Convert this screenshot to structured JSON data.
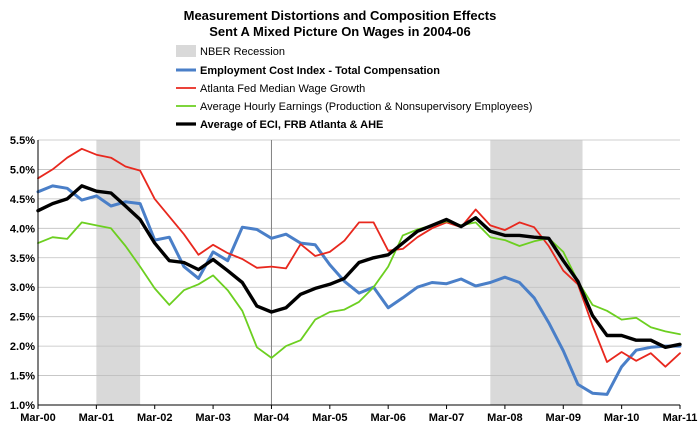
{
  "chart_data": {
    "type": "line",
    "title": [
      "Measurement Distortions and Composition Effects",
      "Sent A Mixed Picture On Wages in 2004-06"
    ],
    "xlabel": "",
    "ylabel": "",
    "x_ticks": [
      "Mar-00",
      "Mar-01",
      "Mar-02",
      "Mar-03",
      "Mar-04",
      "Mar-05",
      "Mar-06",
      "Mar-07",
      "Mar-08",
      "Mar-09",
      "Mar-10",
      "Mar-11"
    ],
    "y_ticks": [
      "1.0%",
      "1.5%",
      "2.0%",
      "2.5%",
      "3.0%",
      "3.5%",
      "4.0%",
      "4.5%",
      "5.0%",
      "5.5%"
    ],
    "ylim": [
      1.0,
      5.5
    ],
    "x_range": [
      2000.0,
      2011.0
    ],
    "grid": "horizontal",
    "legend_position": "top",
    "recession_label": "NBER Recession",
    "recessions": [
      [
        2001.0,
        2001.75
      ],
      [
        2007.75,
        2009.33
      ]
    ],
    "reference_line_x": 2004.0,
    "series": [
      {
        "name": "Employment Cost Index - Total Compensation",
        "color": "#4a7fc8",
        "x": [
          2000.0,
          2000.25,
          2000.5,
          2000.75,
          2001.0,
          2001.25,
          2001.5,
          2001.75,
          2002.0,
          2002.25,
          2002.5,
          2002.75,
          2003.0,
          2003.25,
          2003.5,
          2003.75,
          2004.0,
          2004.25,
          2004.5,
          2004.75,
          2005.0,
          2005.25,
          2005.5,
          2005.75,
          2006.0,
          2006.25,
          2006.5,
          2006.75,
          2007.0,
          2007.25,
          2007.5,
          2007.75,
          2008.0,
          2008.25,
          2008.5,
          2008.75,
          2009.0,
          2009.25,
          2009.5,
          2009.75,
          2010.0,
          2010.25,
          2010.5,
          2010.75,
          2011.0
        ],
        "values": [
          4.62,
          4.72,
          4.68,
          4.48,
          4.55,
          4.38,
          4.45,
          4.42,
          3.8,
          3.85,
          3.35,
          3.15,
          3.6,
          3.45,
          4.02,
          3.98,
          3.83,
          3.9,
          3.75,
          3.72,
          3.38,
          3.1,
          2.9,
          3.0,
          2.65,
          2.82,
          3.0,
          3.08,
          3.06,
          3.14,
          3.02,
          3.08,
          3.17,
          3.08,
          2.82,
          2.4,
          1.92,
          1.35,
          1.2,
          1.18,
          1.65,
          1.93,
          1.98,
          2.0,
          2.0
        ]
      },
      {
        "name": "Atlanta Fed Median Wage Growth",
        "color": "#e8281e",
        "x": [
          2000.0,
          2000.25,
          2000.5,
          2000.75,
          2001.0,
          2001.25,
          2001.5,
          2001.75,
          2002.0,
          2002.25,
          2002.5,
          2002.75,
          2003.0,
          2003.25,
          2003.5,
          2003.75,
          2004.0,
          2004.25,
          2004.5,
          2004.75,
          2005.0,
          2005.25,
          2005.5,
          2005.75,
          2006.0,
          2006.25,
          2006.5,
          2006.75,
          2007.0,
          2007.25,
          2007.5,
          2007.75,
          2008.0,
          2008.25,
          2008.5,
          2008.75,
          2009.0,
          2009.25,
          2009.5,
          2009.75,
          2010.0,
          2010.25,
          2010.5,
          2010.75,
          2011.0
        ],
        "values": [
          4.85,
          5.0,
          5.2,
          5.35,
          5.25,
          5.2,
          5.05,
          4.98,
          4.5,
          4.2,
          3.9,
          3.55,
          3.72,
          3.58,
          3.48,
          3.33,
          3.35,
          3.32,
          3.73,
          3.53,
          3.6,
          3.79,
          4.1,
          4.1,
          3.62,
          3.65,
          3.85,
          4.0,
          4.1,
          4.02,
          4.32,
          4.05,
          3.97,
          4.1,
          4.02,
          3.7,
          3.28,
          3.05,
          2.35,
          1.73,
          1.9,
          1.75,
          1.88,
          1.65,
          1.88
        ]
      },
      {
        "name": "Average Hourly Earnings (Production & Nonsupervisory Employees)",
        "color": "#6ccf20",
        "x": [
          2000.0,
          2000.25,
          2000.5,
          2000.75,
          2001.0,
          2001.25,
          2001.5,
          2001.75,
          2002.0,
          2002.25,
          2002.5,
          2002.75,
          2003.0,
          2003.25,
          2003.5,
          2003.75,
          2004.0,
          2004.25,
          2004.5,
          2004.75,
          2005.0,
          2005.25,
          2005.5,
          2005.75,
          2006.0,
          2006.25,
          2006.5,
          2006.75,
          2007.0,
          2007.25,
          2007.5,
          2007.75,
          2008.0,
          2008.25,
          2008.5,
          2008.75,
          2009.0,
          2009.25,
          2009.5,
          2009.75,
          2010.0,
          2010.25,
          2010.5,
          2010.75,
          2011.0
        ],
        "values": [
          3.75,
          3.85,
          3.82,
          4.1,
          4.05,
          4.0,
          3.7,
          3.35,
          2.98,
          2.7,
          2.95,
          3.05,
          3.2,
          2.95,
          2.6,
          1.98,
          1.8,
          2.0,
          2.1,
          2.45,
          2.58,
          2.62,
          2.75,
          3.0,
          3.35,
          3.88,
          3.98,
          4.05,
          4.12,
          4.05,
          4.1,
          3.85,
          3.8,
          3.7,
          3.78,
          3.83,
          3.6,
          3.1,
          2.7,
          2.6,
          2.45,
          2.48,
          2.32,
          2.25,
          2.2
        ]
      },
      {
        "name": "Average of ECI, FRB Atlanta & AHE",
        "color": "#000000",
        "x": [
          2000.0,
          2000.25,
          2000.5,
          2000.75,
          2001.0,
          2001.25,
          2001.5,
          2001.75,
          2002.0,
          2002.25,
          2002.5,
          2002.75,
          2003.0,
          2003.25,
          2003.5,
          2003.75,
          2004.0,
          2004.25,
          2004.5,
          2004.75,
          2005.0,
          2005.25,
          2005.5,
          2005.75,
          2006.0,
          2006.25,
          2006.5,
          2006.75,
          2007.0,
          2007.25,
          2007.5,
          2007.75,
          2008.0,
          2008.25,
          2008.5,
          2008.75,
          2009.0,
          2009.25,
          2009.5,
          2009.75,
          2010.0,
          2010.25,
          2010.5,
          2010.75,
          2011.0
        ],
        "values": [
          4.3,
          4.42,
          4.5,
          4.72,
          4.63,
          4.6,
          4.38,
          4.15,
          3.75,
          3.45,
          3.42,
          3.3,
          3.47,
          3.28,
          3.08,
          2.68,
          2.58,
          2.65,
          2.88,
          2.98,
          3.05,
          3.15,
          3.42,
          3.5,
          3.55,
          3.75,
          3.95,
          4.05,
          4.15,
          4.03,
          4.18,
          3.95,
          3.88,
          3.88,
          3.85,
          3.83,
          3.45,
          3.1,
          2.52,
          2.18,
          2.18,
          2.1,
          2.1,
          1.98,
          2.03
        ]
      }
    ]
  }
}
